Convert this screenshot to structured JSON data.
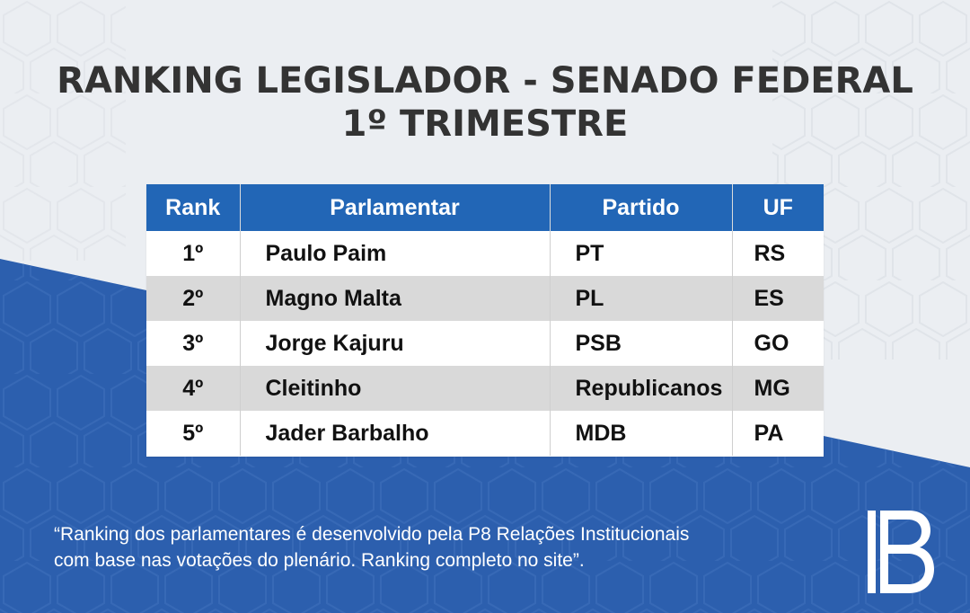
{
  "title": {
    "line1": "RANKING LEGISLADOR - SENADO FEDERAL",
    "line2": "1º TRIMESTRE"
  },
  "table": {
    "headers": {
      "rank": "Rank",
      "name": "Parlamentar",
      "party": "Partido",
      "uf": "UF"
    },
    "rows": [
      {
        "rank": "1º",
        "name": "Paulo Paim",
        "party": "PT",
        "uf": "RS"
      },
      {
        "rank": "2º",
        "name": "Magno Malta",
        "party": "PL",
        "uf": "ES"
      },
      {
        "rank": "3º",
        "name": "Jorge Kajuru",
        "party": "PSB",
        "uf": "GO"
      },
      {
        "rank": "4º",
        "name": "Cleitinho",
        "party": "Republicanos",
        "uf": "MG"
      },
      {
        "rank": "5º",
        "name": "Jader Barbalho",
        "party": "MDB",
        "uf": "PA"
      }
    ]
  },
  "footer": {
    "quote_line1": "“Ranking dos parlamentares é desenvolvido pela P8 Relações Institucionais",
    "quote_line2": "com base nas votações do plenário. Ranking completo no site”."
  },
  "colors": {
    "background_light": "#ebeef2",
    "background_blue": "#2c5fae",
    "header_blue": "#2266b6",
    "row_alt": "#d9d9d9",
    "title_text": "#333333"
  },
  "icons": {
    "logo": "ib-logo"
  }
}
